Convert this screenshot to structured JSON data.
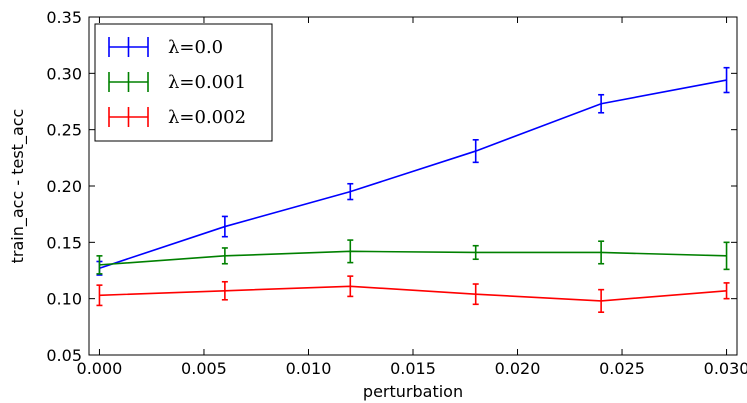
{
  "chart_data": {
    "type": "line",
    "title": "",
    "xlabel": "perturbation",
    "ylabel": "train_acc - test_acc",
    "xlim": [
      -0.0005,
      0.0305
    ],
    "ylim": [
      0.05,
      0.35
    ],
    "xticks": [
      0.0,
      0.005,
      0.01,
      0.015,
      0.02,
      0.025,
      0.03
    ],
    "xtick_labels": [
      "0.000",
      "0.005",
      "0.010",
      "0.015",
      "0.020",
      "0.025",
      "0.030"
    ],
    "yticks": [
      0.05,
      0.1,
      0.15,
      0.2,
      0.25,
      0.3,
      0.35
    ],
    "ytick_labels": [
      "0.05",
      "0.10",
      "0.15",
      "0.20",
      "0.25",
      "0.30",
      "0.35"
    ],
    "grid": false,
    "legend_position": "top-left",
    "x": [
      0.0,
      0.006,
      0.012,
      0.018,
      0.024,
      0.03
    ],
    "series": [
      {
        "name": "λ=0.0",
        "color": "#0000ff",
        "values": [
          0.127,
          0.164,
          0.195,
          0.231,
          0.273,
          0.294
        ],
        "errors": [
          0.006,
          0.009,
          0.007,
          0.01,
          0.008,
          0.011
        ]
      },
      {
        "name": "λ=0.001",
        "color": "#008000",
        "values": [
          0.13,
          0.138,
          0.142,
          0.141,
          0.141,
          0.138
        ],
        "errors": [
          0.008,
          0.007,
          0.01,
          0.006,
          0.01,
          0.012
        ]
      },
      {
        "name": "λ=0.002",
        "color": "#ff0000",
        "values": [
          0.103,
          0.107,
          0.111,
          0.104,
          0.098,
          0.107
        ],
        "errors": [
          0.009,
          0.008,
          0.009,
          0.009,
          0.01,
          0.007
        ]
      }
    ]
  }
}
